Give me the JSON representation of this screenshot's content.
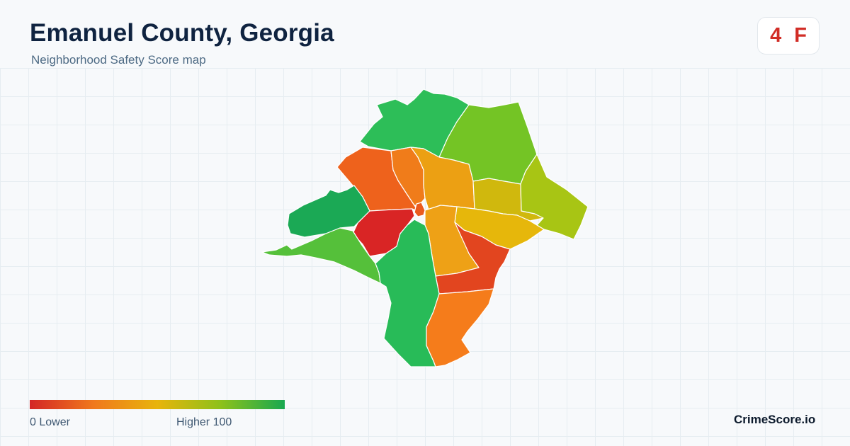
{
  "header": {
    "title": "Emanuel County, Georgia",
    "subtitle": "Neighborhood Safety Score map"
  },
  "score_badge": {
    "score": "4",
    "grade": "F",
    "color": "#d12d26"
  },
  "legend": {
    "min_label": "0  Lower",
    "max_label": "Higher  100",
    "colors": [
      "#d32626",
      "#f0781c",
      "#e8b40c",
      "#8dc11a",
      "#18a850"
    ]
  },
  "map": {
    "regions": [
      {
        "name": "north-tract",
        "color": "#2dbe58"
      },
      {
        "name": "northeast-tract",
        "color": "#74c425"
      },
      {
        "name": "north-west-tract",
        "color": "#ee621c"
      },
      {
        "name": "north-center-tract",
        "color": "#f07c1a"
      },
      {
        "name": "center-north-tract",
        "color": "#eca013"
      },
      {
        "name": "east-center-tract",
        "color": "#d0b80d"
      },
      {
        "name": "east-tract",
        "color": "#a8c514"
      },
      {
        "name": "center-east-tract",
        "color": "#e6b70b"
      },
      {
        "name": "west-tract",
        "color": "#1ba955"
      },
      {
        "name": "center-west-tract",
        "color": "#d92525"
      },
      {
        "name": "southwest-tract",
        "color": "#55c03a"
      },
      {
        "name": "center-tract",
        "color": "#eea116"
      },
      {
        "name": "southeast-center-tract",
        "color": "#e2451f"
      },
      {
        "name": "south-center-tract",
        "color": "#28bb58"
      },
      {
        "name": "south-tract",
        "color": "#f57c1b"
      },
      {
        "name": "hub-tract",
        "color": "#ea5a1e"
      }
    ]
  },
  "brand": "CrimeScore.io"
}
